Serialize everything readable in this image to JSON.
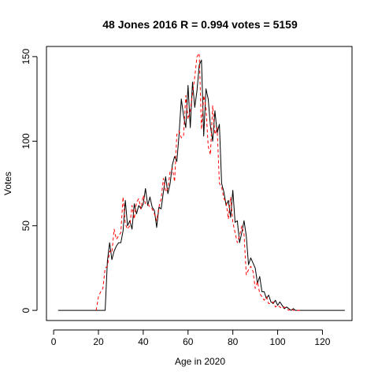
{
  "chart_data": {
    "type": "line",
    "title": "48 Jones 2016 R = 0.994 votes = 5159",
    "xlabel": "Age in 2020",
    "ylabel": "Votes",
    "xlim": [
      -3.2,
      133.2
    ],
    "ylim": [
      -6,
      156
    ],
    "xticks": [
      0,
      20,
      40,
      60,
      80,
      100,
      120
    ],
    "yticks": [
      0,
      50,
      100,
      150
    ],
    "grid": false,
    "legend": "none",
    "series": [
      {
        "style": "solid",
        "color": "#000000",
        "x": [
          2,
          3,
          4,
          5,
          6,
          7,
          8,
          9,
          10,
          11,
          12,
          13,
          14,
          15,
          16,
          17,
          18,
          19,
          20,
          21,
          22,
          23,
          24,
          25,
          26,
          27,
          28,
          29,
          30,
          31,
          32,
          33,
          34,
          35,
          36,
          37,
          38,
          39,
          40,
          41,
          42,
          43,
          44,
          45,
          46,
          47,
          48,
          49,
          50,
          51,
          52,
          53,
          54,
          55,
          56,
          57,
          58,
          59,
          60,
          61,
          62,
          63,
          64,
          65,
          66,
          67,
          68,
          69,
          70,
          71,
          72,
          73,
          74,
          75,
          76,
          77,
          78,
          79,
          80,
          81,
          82,
          83,
          84,
          85,
          86,
          87,
          88,
          89,
          90,
          91,
          92,
          93,
          94,
          95,
          96,
          97,
          98,
          99,
          100,
          101,
          102,
          103,
          104,
          105,
          106,
          107,
          108,
          109,
          110,
          111,
          112,
          113,
          114,
          115,
          116,
          117,
          118,
          119,
          120,
          121,
          122,
          123,
          124,
          125,
          126,
          127,
          128,
          129,
          130
        ],
        "y": [
          0,
          0,
          0,
          0,
          0,
          0,
          0,
          0,
          0,
          0,
          0,
          0,
          0,
          0,
          0,
          0,
          0,
          0,
          0,
          0,
          0,
          0,
          29,
          40,
          30,
          35,
          38,
          40,
          40,
          47,
          65,
          50,
          53,
          48,
          63,
          57,
          62,
          60,
          63,
          72,
          62,
          67,
          61,
          59,
          49,
          61,
          60,
          70,
          79,
          69,
          75,
          86,
          91,
          88,
          104,
          125,
          115,
          108,
          133,
          108,
          135,
          120,
          130,
          145,
          148,
          103,
          131,
          125,
          109,
          100,
          118,
          105,
          110,
          75,
          70,
          62,
          65,
          55,
          71,
          52,
          53,
          40,
          46,
          53,
          44,
          27,
          31,
          28,
          25,
          16,
          20,
          11,
          11,
          7,
          9,
          5,
          4,
          6,
          3,
          5,
          3,
          1,
          2,
          1,
          0,
          1,
          0,
          0,
          0,
          0,
          0,
          0,
          0,
          0,
          0,
          0,
          0,
          0,
          0,
          0,
          0,
          0,
          0,
          0,
          0,
          0,
          0,
          0,
          0
        ]
      },
      {
        "style": "dashed",
        "color": "#ff0000",
        "x": [
          19,
          20,
          21,
          22,
          23,
          24,
          25,
          26,
          27,
          28,
          29,
          30,
          31,
          32,
          33,
          34,
          35,
          36,
          37,
          38,
          39,
          40,
          41,
          42,
          43,
          44,
          45,
          46,
          47,
          48,
          49,
          50,
          51,
          52,
          53,
          54,
          55,
          56,
          57,
          58,
          59,
          60,
          61,
          62,
          63,
          64,
          65,
          66,
          67,
          68,
          69,
          70,
          71,
          72,
          73,
          74,
          75,
          76,
          77,
          78,
          79,
          80,
          81,
          82,
          83,
          84,
          85,
          86,
          87,
          88,
          89,
          90,
          91,
          92,
          93,
          94,
          95,
          96,
          97,
          98,
          99,
          100,
          101,
          102,
          103,
          104,
          105,
          106,
          107,
          108,
          109,
          110
        ],
        "y": [
          0,
          8,
          11,
          13,
          25,
          26,
          35,
          34,
          48,
          42,
          44,
          46,
          67,
          51,
          48,
          50,
          62,
          54,
          64,
          66,
          60,
          68,
          63,
          63,
          61,
          60,
          57,
          53,
          61,
          66,
          78,
          70,
          72,
          82,
          84,
          76,
          104,
          106,
          102,
          103,
          127,
          113,
          118,
          128,
          138,
          150,
          152,
          107,
          127,
          120,
          97,
          92,
          121,
          104,
          108,
          75,
          73,
          66,
          64,
          54,
          67,
          52,
          46,
          40,
          44,
          50,
          45,
          21,
          24,
          26,
          23,
          13,
          17,
          10,
          8,
          6,
          8,
          4,
          4,
          5,
          2,
          3,
          2,
          1,
          2,
          1,
          0,
          1,
          0,
          0,
          0,
          0
        ]
      }
    ]
  }
}
